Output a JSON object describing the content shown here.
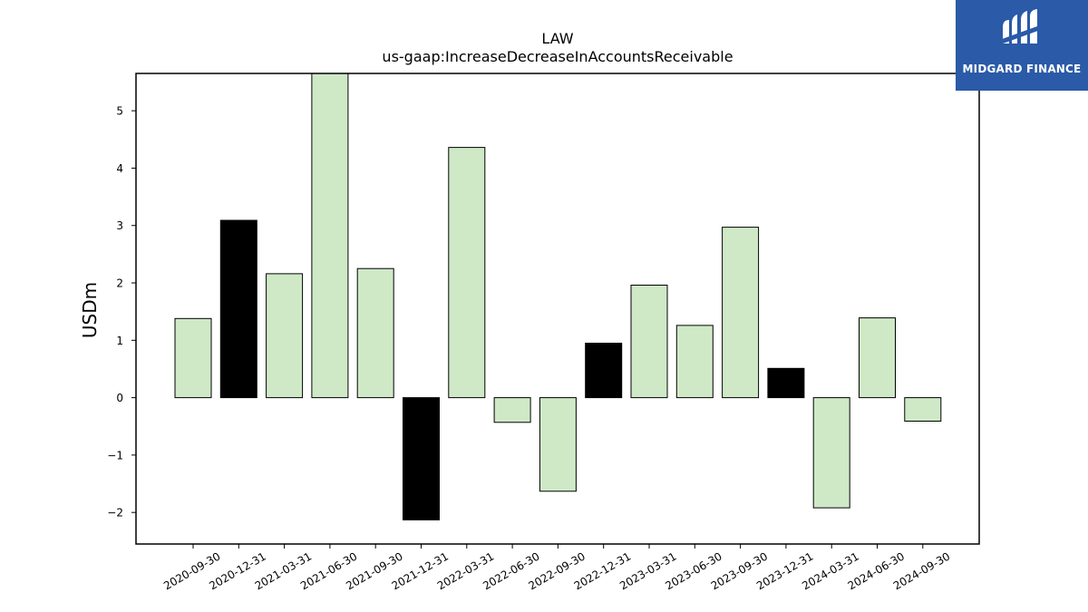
{
  "brand": {
    "name": "MIDGARD FINANCE",
    "bg_color": "#2a5aa8"
  },
  "chart_data": {
    "type": "bar",
    "title": "LAW",
    "subtitle": "us-gaap:IncreaseDecreaseInAccountsReceivable",
    "xlabel": "",
    "ylabel": "USDm",
    "ylim": [
      -2.55,
      5.65
    ],
    "yticks": [
      -2,
      -1,
      0,
      1,
      2,
      3,
      4,
      5
    ],
    "grid": false,
    "colors": {
      "default": "#cfe9c7",
      "highlight": "#000000"
    },
    "categories": [
      "2020-09-30",
      "2020-12-31",
      "2021-03-31",
      "2021-06-30",
      "2021-09-30",
      "2021-12-31",
      "2022-03-31",
      "2022-06-30",
      "2022-09-30",
      "2022-12-31",
      "2023-03-31",
      "2023-06-30",
      "2023-09-30",
      "2023-12-31",
      "2024-03-31",
      "2024-06-30",
      "2024-09-30"
    ],
    "values": [
      1.38,
      3.09,
      2.16,
      5.65,
      2.25,
      -2.13,
      4.36,
      -0.43,
      -1.63,
      0.95,
      1.96,
      1.26,
      2.97,
      0.51,
      -1.92,
      1.39,
      -0.41
    ],
    "highlight": [
      false,
      true,
      false,
      false,
      false,
      true,
      false,
      false,
      false,
      true,
      false,
      false,
      false,
      true,
      false,
      false,
      false
    ]
  }
}
